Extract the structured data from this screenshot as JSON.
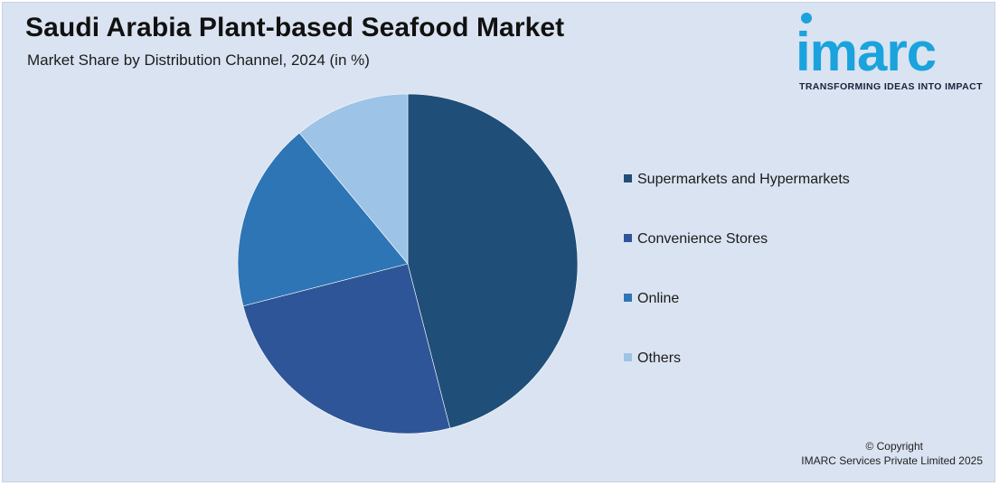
{
  "title": "Saudi Arabia Plant-based Seafood Market",
  "subtitle": "Market Share by Distribution Channel, 2024 (in %)",
  "logo": {
    "word": "imarc",
    "tagline": "TRANSFORMING IDEAS INTO IMPACT",
    "color": "#1aa3dd"
  },
  "chart_data": {
    "type": "pie",
    "title": "Saudi Arabia Plant-based Seafood Market",
    "subtitle": "Market Share by Distribution Channel, 2024 (in %)",
    "legend_position": "right",
    "categories": [
      "Supermarkets and Hypermarkets",
      "Convenience Stores",
      "Online",
      "Others"
    ],
    "values": [
      46,
      25,
      18,
      11
    ],
    "colors": [
      "#1f4e79",
      "#2e5597",
      "#2e75b6",
      "#9dc3e6"
    ],
    "start_angle_deg": 0,
    "direction": "clockwise"
  },
  "copyright": {
    "line1": "© Copyright",
    "line2": "IMARC Services Private Limited 2025"
  }
}
